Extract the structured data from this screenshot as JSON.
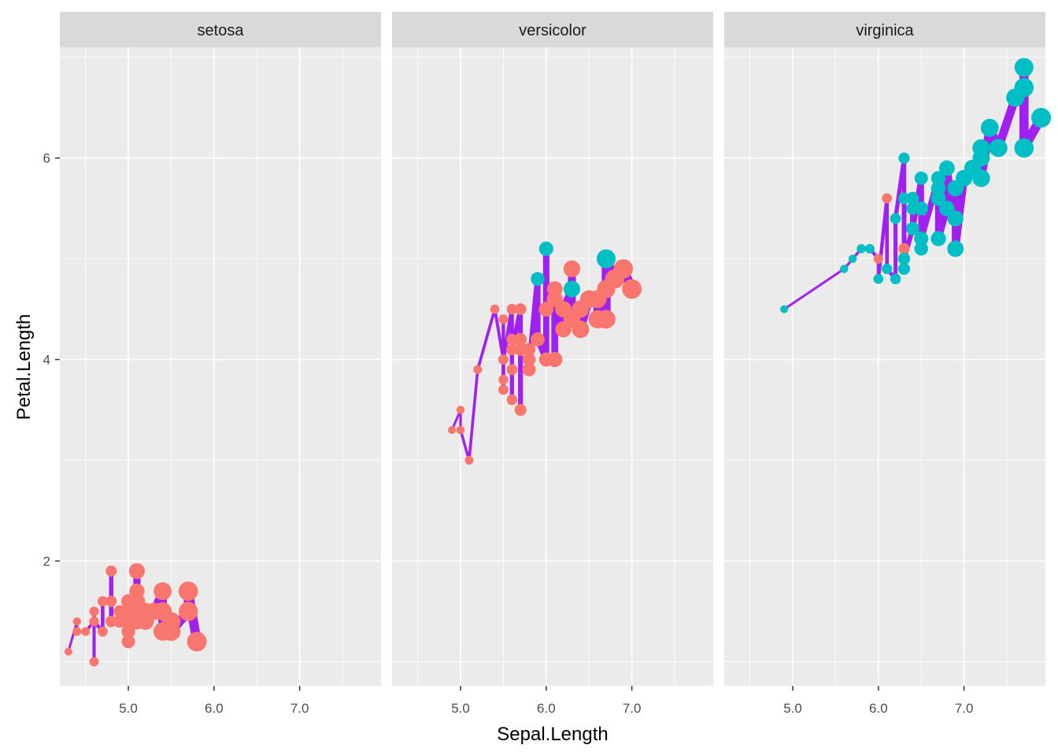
{
  "chart_data": {
    "type": "scatter",
    "x_variable": "Sepal.Length",
    "y_variable": "Petal.Length",
    "xlabel": "Sepal.Length",
    "ylabel": "Petal.Length",
    "xlim": [
      4.2,
      7.95
    ],
    "ylim": [
      0.76,
      7.1
    ],
    "x_ticks": [
      5.0,
      6.0,
      7.0
    ],
    "x_tick_labels": [
      "5.0",
      "6.0",
      "7.0"
    ],
    "y_ticks": [
      2,
      4,
      6
    ],
    "y_tick_labels": [
      "2",
      "4",
      "6"
    ],
    "grid": true,
    "line_color": "#A020F0",
    "point_colors": {
      "group1": "#F8766D",
      "group2": "#00BFC4"
    },
    "panel_background": "#EBEBEB",
    "strip_background": "#D9D9D9",
    "panels": [
      {
        "label": "setosa",
        "points": [
          {
            "x": 4.3,
            "y": 1.1,
            "g": 1
          },
          {
            "x": 4.4,
            "y": 1.4,
            "g": 1
          },
          {
            "x": 4.4,
            "y": 1.3,
            "g": 1
          },
          {
            "x": 4.4,
            "y": 1.3,
            "g": 1
          },
          {
            "x": 4.5,
            "y": 1.3,
            "g": 1
          },
          {
            "x": 4.6,
            "y": 1.4,
            "g": 1
          },
          {
            "x": 4.6,
            "y": 1.0,
            "g": 1
          },
          {
            "x": 4.6,
            "y": 1.5,
            "g": 1
          },
          {
            "x": 4.6,
            "y": 1.4,
            "g": 1
          },
          {
            "x": 4.7,
            "y": 1.3,
            "g": 1
          },
          {
            "x": 4.7,
            "y": 1.6,
            "g": 1
          },
          {
            "x": 4.8,
            "y": 1.6,
            "g": 1
          },
          {
            "x": 4.8,
            "y": 1.4,
            "g": 1
          },
          {
            "x": 4.8,
            "y": 1.9,
            "g": 1
          },
          {
            "x": 4.8,
            "y": 1.6,
            "g": 1
          },
          {
            "x": 4.8,
            "y": 1.4,
            "g": 1
          },
          {
            "x": 4.9,
            "y": 1.4,
            "g": 1
          },
          {
            "x": 4.9,
            "y": 1.5,
            "g": 1
          },
          {
            "x": 4.9,
            "y": 1.5,
            "g": 1
          },
          {
            "x": 4.9,
            "y": 1.4,
            "g": 1
          },
          {
            "x": 5.0,
            "y": 1.4,
            "g": 1
          },
          {
            "x": 5.0,
            "y": 1.5,
            "g": 1
          },
          {
            "x": 5.0,
            "y": 1.6,
            "g": 1
          },
          {
            "x": 5.0,
            "y": 1.2,
            "g": 1
          },
          {
            "x": 5.0,
            "y": 1.3,
            "g": 1
          },
          {
            "x": 5.0,
            "y": 1.6,
            "g": 1
          },
          {
            "x": 5.0,
            "y": 1.4,
            "g": 1
          },
          {
            "x": 5.0,
            "y": 1.6,
            "g": 1
          },
          {
            "x": 5.1,
            "y": 1.4,
            "g": 1
          },
          {
            "x": 5.1,
            "y": 1.5,
            "g": 1
          },
          {
            "x": 5.1,
            "y": 1.5,
            "g": 1
          },
          {
            "x": 5.1,
            "y": 1.7,
            "g": 1
          },
          {
            "x": 5.1,
            "y": 1.5,
            "g": 1
          },
          {
            "x": 5.1,
            "y": 1.9,
            "g": 1
          },
          {
            "x": 5.1,
            "y": 1.4,
            "g": 1
          },
          {
            "x": 5.1,
            "y": 1.6,
            "g": 1
          },
          {
            "x": 5.2,
            "y": 1.5,
            "g": 1
          },
          {
            "x": 5.2,
            "y": 1.4,
            "g": 1
          },
          {
            "x": 5.2,
            "y": 1.5,
            "g": 1
          },
          {
            "x": 5.3,
            "y": 1.5,
            "g": 1
          },
          {
            "x": 5.4,
            "y": 1.7,
            "g": 1
          },
          {
            "x": 5.4,
            "y": 1.5,
            "g": 1
          },
          {
            "x": 5.4,
            "y": 1.7,
            "g": 1
          },
          {
            "x": 5.4,
            "y": 1.5,
            "g": 1
          },
          {
            "x": 5.4,
            "y": 1.3,
            "g": 1
          },
          {
            "x": 5.5,
            "y": 1.4,
            "g": 1
          },
          {
            "x": 5.5,
            "y": 1.3,
            "g": 1
          },
          {
            "x": 5.7,
            "y": 1.5,
            "g": 1
          },
          {
            "x": 5.7,
            "y": 1.7,
            "g": 1
          },
          {
            "x": 5.8,
            "y": 1.2,
            "g": 1
          }
        ]
      },
      {
        "label": "versicolor",
        "points": [
          {
            "x": 4.9,
            "y": 3.3,
            "g": 1
          },
          {
            "x": 5.0,
            "y": 3.5,
            "g": 1
          },
          {
            "x": 5.0,
            "y": 3.3,
            "g": 1
          },
          {
            "x": 5.1,
            "y": 3.0,
            "g": 1
          },
          {
            "x": 5.2,
            "y": 3.9,
            "g": 1
          },
          {
            "x": 5.4,
            "y": 4.5,
            "g": 1
          },
          {
            "x": 5.5,
            "y": 4.0,
            "g": 1
          },
          {
            "x": 5.5,
            "y": 4.4,
            "g": 1
          },
          {
            "x": 5.5,
            "y": 3.8,
            "g": 1
          },
          {
            "x": 5.5,
            "y": 3.7,
            "g": 1
          },
          {
            "x": 5.5,
            "y": 4.0,
            "g": 1
          },
          {
            "x": 5.6,
            "y": 4.5,
            "g": 1
          },
          {
            "x": 5.6,
            "y": 3.6,
            "g": 1
          },
          {
            "x": 5.6,
            "y": 3.9,
            "g": 1
          },
          {
            "x": 5.6,
            "y": 4.2,
            "g": 1
          },
          {
            "x": 5.6,
            "y": 4.1,
            "g": 1
          },
          {
            "x": 5.7,
            "y": 4.5,
            "g": 1
          },
          {
            "x": 5.7,
            "y": 3.5,
            "g": 1
          },
          {
            "x": 5.7,
            "y": 4.2,
            "g": 1
          },
          {
            "x": 5.7,
            "y": 4.2,
            "g": 1
          },
          {
            "x": 5.7,
            "y": 4.1,
            "g": 1
          },
          {
            "x": 5.8,
            "y": 4.1,
            "g": 1
          },
          {
            "x": 5.8,
            "y": 4.0,
            "g": 1
          },
          {
            "x": 5.8,
            "y": 3.9,
            "g": 1
          },
          {
            "x": 5.9,
            "y": 4.8,
            "g": 2
          },
          {
            "x": 5.9,
            "y": 4.2,
            "g": 1
          },
          {
            "x": 6.0,
            "y": 4.0,
            "g": 1
          },
          {
            "x": 6.0,
            "y": 5.1,
            "g": 2
          },
          {
            "x": 6.0,
            "y": 4.5,
            "g": 2
          },
          {
            "x": 6.0,
            "y": 4.5,
            "g": 1
          },
          {
            "x": 6.1,
            "y": 4.7,
            "g": 1
          },
          {
            "x": 6.1,
            "y": 4.0,
            "g": 1
          },
          {
            "x": 6.1,
            "y": 4.7,
            "g": 1
          },
          {
            "x": 6.1,
            "y": 4.6,
            "g": 1
          },
          {
            "x": 6.2,
            "y": 4.3,
            "g": 1
          },
          {
            "x": 6.2,
            "y": 4.5,
            "g": 1
          },
          {
            "x": 6.3,
            "y": 4.7,
            "g": 2
          },
          {
            "x": 6.3,
            "y": 4.9,
            "g": 1
          },
          {
            "x": 6.3,
            "y": 4.4,
            "g": 1
          },
          {
            "x": 6.4,
            "y": 4.5,
            "g": 1
          },
          {
            "x": 6.4,
            "y": 4.3,
            "g": 1
          },
          {
            "x": 6.5,
            "y": 4.6,
            "g": 1
          },
          {
            "x": 6.6,
            "y": 4.6,
            "g": 1
          },
          {
            "x": 6.6,
            "y": 4.4,
            "g": 1
          },
          {
            "x": 6.7,
            "y": 4.7,
            "g": 1
          },
          {
            "x": 6.7,
            "y": 4.4,
            "g": 1
          },
          {
            "x": 6.7,
            "y": 5.0,
            "g": 2
          },
          {
            "x": 6.8,
            "y": 4.8,
            "g": 1
          },
          {
            "x": 6.9,
            "y": 4.9,
            "g": 1
          },
          {
            "x": 7.0,
            "y": 4.7,
            "g": 1
          }
        ]
      },
      {
        "label": "virginica",
        "points": [
          {
            "x": 4.9,
            "y": 4.5,
            "g": 2
          },
          {
            "x": 5.6,
            "y": 4.9,
            "g": 2
          },
          {
            "x": 5.7,
            "y": 5.0,
            "g": 2
          },
          {
            "x": 5.8,
            "y": 5.1,
            "g": 2
          },
          {
            "x": 5.8,
            "y": 5.1,
            "g": 2
          },
          {
            "x": 5.8,
            "y": 5.1,
            "g": 2
          },
          {
            "x": 5.9,
            "y": 5.1,
            "g": 2
          },
          {
            "x": 6.0,
            "y": 5.0,
            "g": 1
          },
          {
            "x": 6.0,
            "y": 4.8,
            "g": 2
          },
          {
            "x": 6.1,
            "y": 5.6,
            "g": 1
          },
          {
            "x": 6.1,
            "y": 4.9,
            "g": 2
          },
          {
            "x": 6.2,
            "y": 4.8,
            "g": 2
          },
          {
            "x": 6.2,
            "y": 5.4,
            "g": 2
          },
          {
            "x": 6.3,
            "y": 6.0,
            "g": 2
          },
          {
            "x": 6.3,
            "y": 5.1,
            "g": 1
          },
          {
            "x": 6.3,
            "y": 5.6,
            "g": 2
          },
          {
            "x": 6.3,
            "y": 4.9,
            "g": 2
          },
          {
            "x": 6.3,
            "y": 5.0,
            "g": 2
          },
          {
            "x": 6.4,
            "y": 5.3,
            "g": 2
          },
          {
            "x": 6.4,
            "y": 5.5,
            "g": 2
          },
          {
            "x": 6.4,
            "y": 5.6,
            "g": 2
          },
          {
            "x": 6.4,
            "y": 5.3,
            "g": 2
          },
          {
            "x": 6.5,
            "y": 5.8,
            "g": 2
          },
          {
            "x": 6.5,
            "y": 5.1,
            "g": 2
          },
          {
            "x": 6.5,
            "y": 5.5,
            "g": 2
          },
          {
            "x": 6.5,
            "y": 5.2,
            "g": 2
          },
          {
            "x": 6.7,
            "y": 5.8,
            "g": 2
          },
          {
            "x": 6.7,
            "y": 5.7,
            "g": 2
          },
          {
            "x": 6.7,
            "y": 5.6,
            "g": 2
          },
          {
            "x": 6.7,
            "y": 5.2,
            "g": 2
          },
          {
            "x": 6.8,
            "y": 5.5,
            "g": 2
          },
          {
            "x": 6.8,
            "y": 5.9,
            "g": 2
          },
          {
            "x": 6.9,
            "y": 5.4,
            "g": 2
          },
          {
            "x": 6.9,
            "y": 5.7,
            "g": 2
          },
          {
            "x": 6.9,
            "y": 5.1,
            "g": 2
          },
          {
            "x": 7.0,
            "y": 5.8,
            "g": 2
          },
          {
            "x": 7.1,
            "y": 5.9,
            "g": 2
          },
          {
            "x": 7.2,
            "y": 6.0,
            "g": 2
          },
          {
            "x": 7.2,
            "y": 6.1,
            "g": 2
          },
          {
            "x": 7.2,
            "y": 5.8,
            "g": 2
          },
          {
            "x": 7.3,
            "y": 6.3,
            "g": 2
          },
          {
            "x": 7.4,
            "y": 6.1,
            "g": 2
          },
          {
            "x": 7.6,
            "y": 6.6,
            "g": 2
          },
          {
            "x": 7.7,
            "y": 6.7,
            "g": 2
          },
          {
            "x": 7.7,
            "y": 6.9,
            "g": 2
          },
          {
            "x": 7.7,
            "y": 6.7,
            "g": 2
          },
          {
            "x": 7.7,
            "y": 6.1,
            "g": 2
          },
          {
            "x": 7.9,
            "y": 6.4,
            "g": 2
          }
        ]
      }
    ]
  }
}
